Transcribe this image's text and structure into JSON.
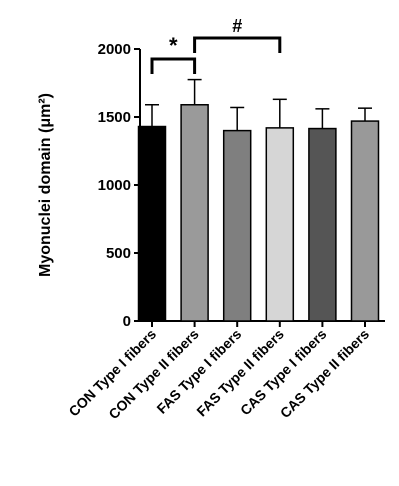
{
  "chart_data": {
    "type": "bar",
    "y_label": "Myonuclei domain (μm²)",
    "categories": [
      "CON Type I fibers",
      "CON Type II fibers",
      "FAS Type I fibers",
      "FAS Type II fibers",
      "CAS Type I fibers",
      "CAS Type II fibers"
    ],
    "values": [
      1430,
      1590,
      1400,
      1420,
      1415,
      1470
    ],
    "errors": [
      160,
      185,
      170,
      210,
      145,
      95
    ],
    "colors": [
      "#000000",
      "#9a9a9a",
      "#7f7f7f",
      "#d6d6d6",
      "#555555",
      "#999999"
    ],
    "ylim": [
      0,
      2000
    ],
    "yticks": [
      0,
      500,
      1000,
      1500,
      2000
    ],
    "annotations": [
      "*",
      "#"
    ]
  }
}
